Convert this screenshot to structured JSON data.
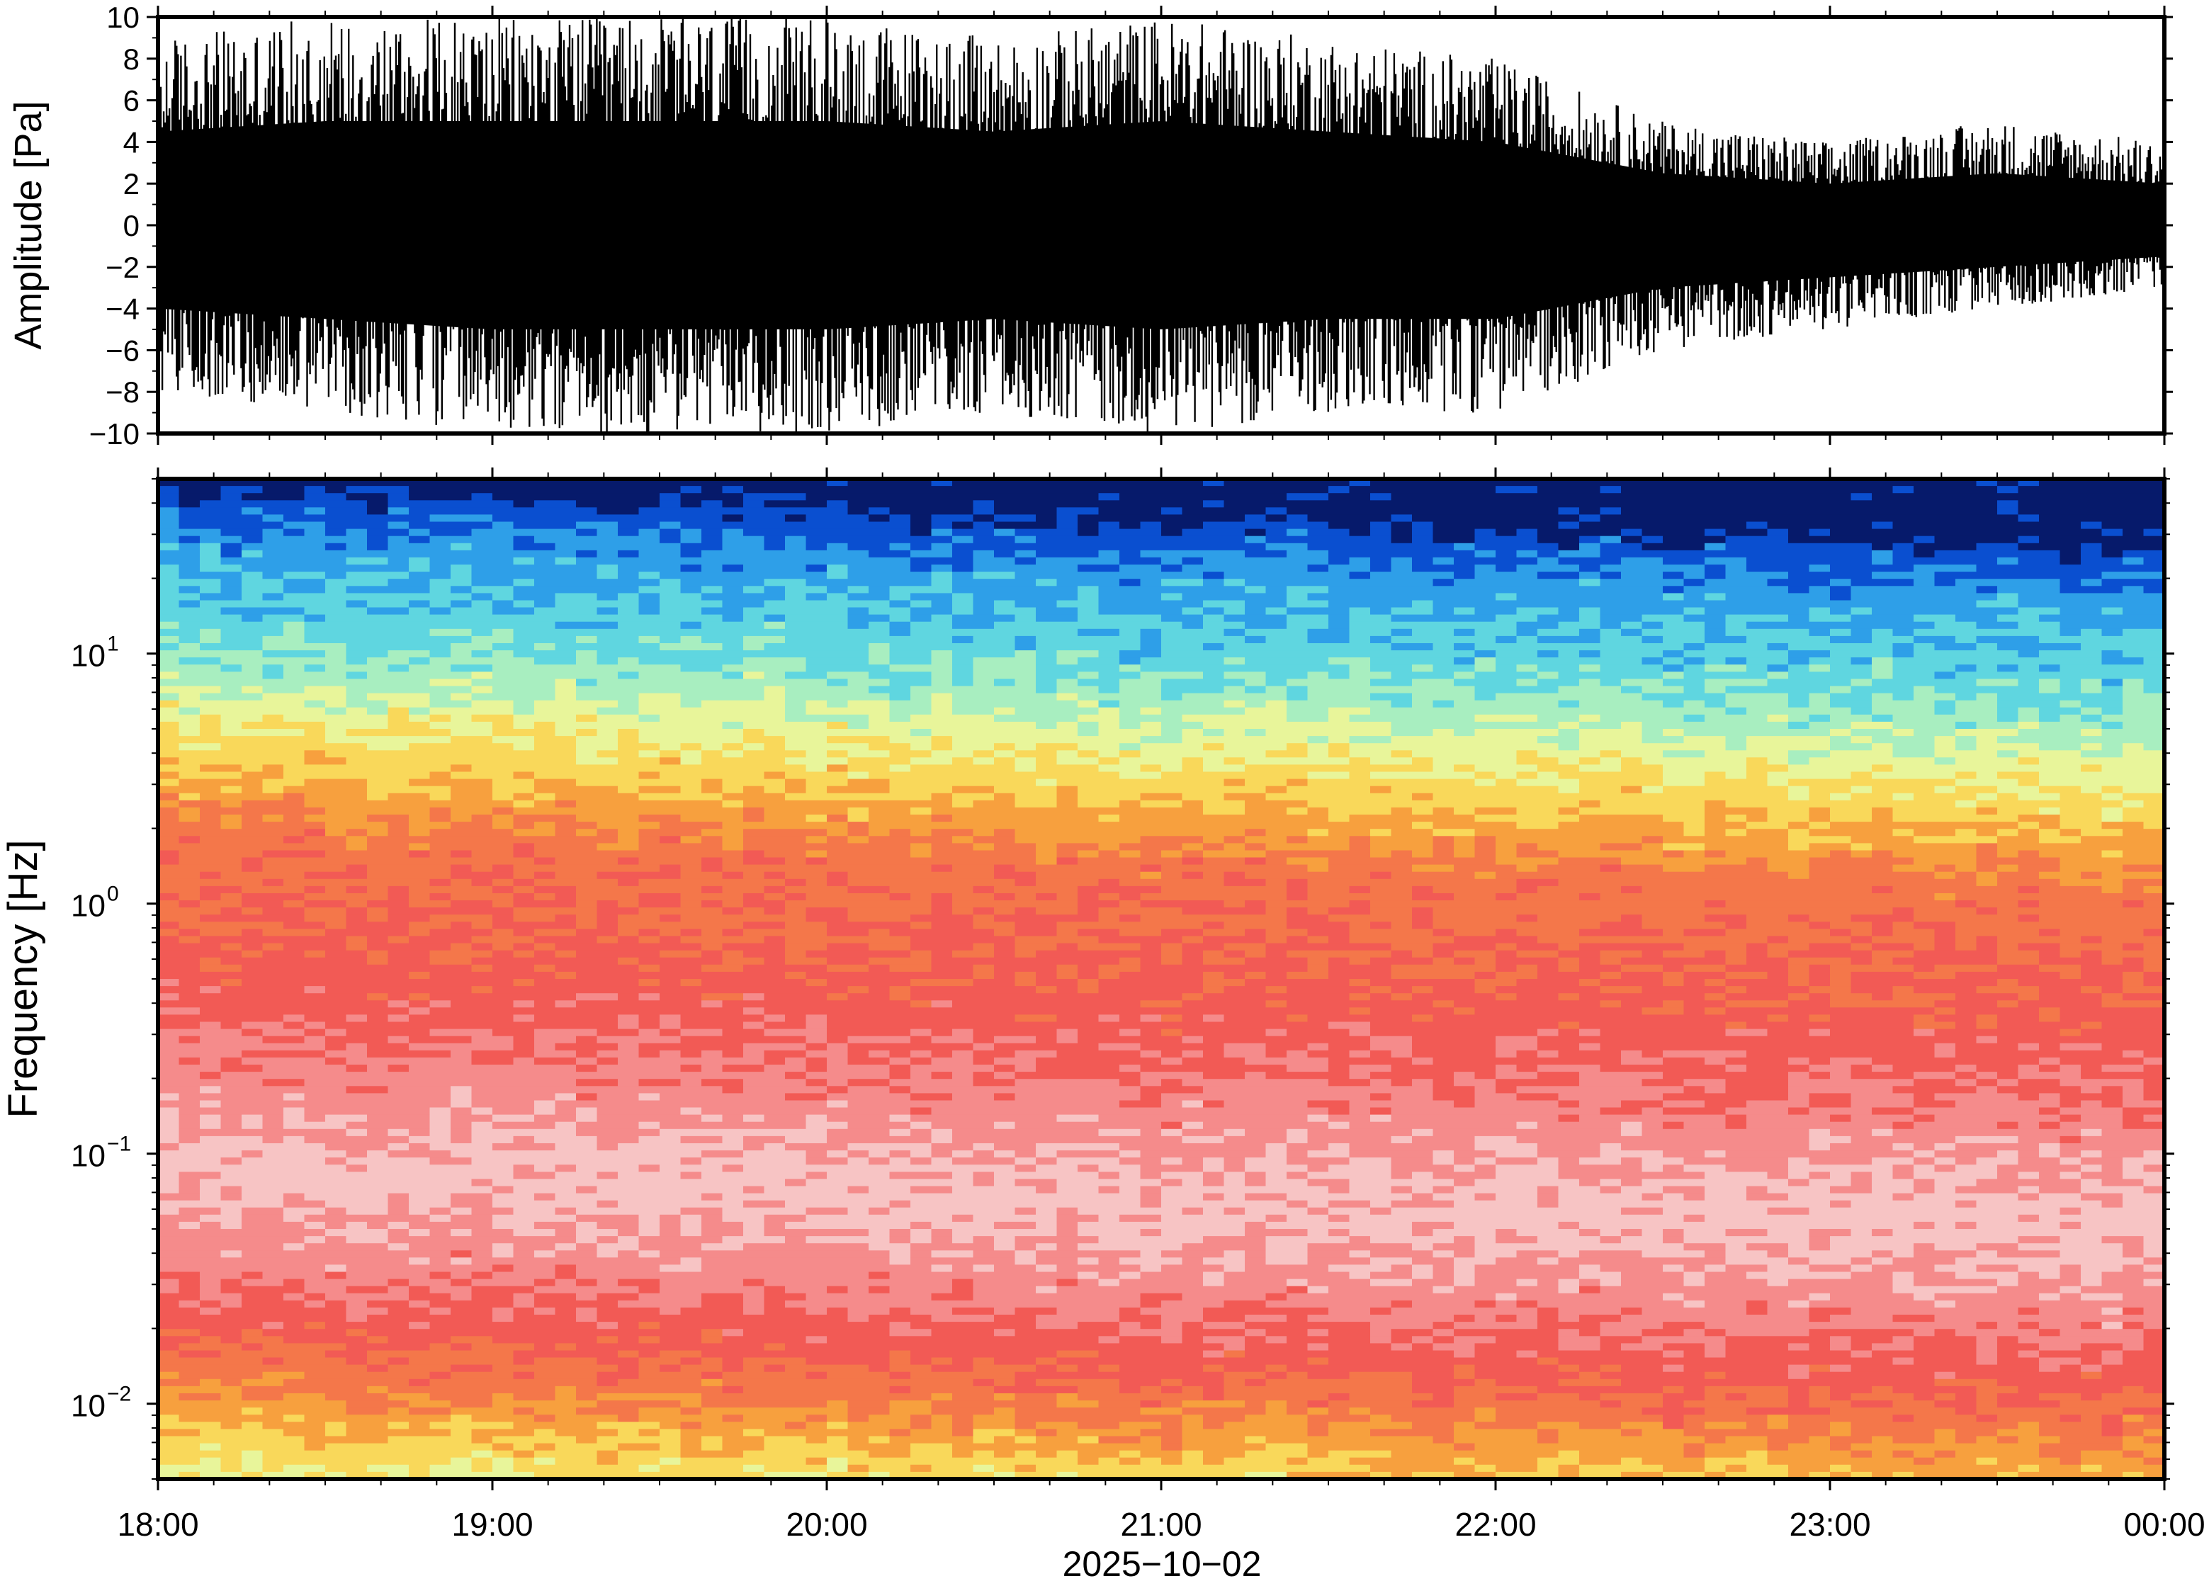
{
  "chart_data": [
    {
      "type": "line",
      "ylabel": "Amplitude [Pa]",
      "ylim": [
        -10,
        10
      ],
      "yticks": [
        "10",
        "8",
        "6",
        "4",
        "2",
        "0",
        "−2",
        "−4",
        "−6",
        "−8",
        "−10"
      ],
      "xlim": [
        "18:00",
        "00:00"
      ],
      "series": [
        {
          "description_values": "envelope (peak amplitude) of the pressure trace, sampled every 30 min",
          "time": [
            "18:00",
            "18:30",
            "19:00",
            "19:30",
            "20:00",
            "20:30",
            "21:00",
            "21:30",
            "22:00",
            "22:30",
            "23:00",
            "23:30",
            "00:00"
          ],
          "upper": [
            9,
            10,
            10,
            10,
            10,
            9,
            10,
            9,
            8,
            5,
            4,
            5,
            4
          ],
          "lower": [
            -8,
            -9,
            -10,
            -10,
            -10,
            -9,
            -10,
            -9,
            -9,
            -6,
            -5,
            -4,
            -3
          ]
        }
      ],
      "grid": false
    },
    {
      "type": "heatmap",
      "ylabel": "Frequency [Hz]",
      "yscale": "log",
      "ylim": [
        0.005,
        50
      ],
      "yticks": [
        {
          "base": "10",
          "exp": "1",
          "value": 10
        },
        {
          "base": "10",
          "exp": "0",
          "value": 1
        },
        {
          "base": "10",
          "exp": "−1",
          "value": 0.1
        },
        {
          "base": "10",
          "exp": "−2",
          "value": 0.01
        }
      ],
      "xlabel": "2025−10−02",
      "xticks": [
        "18:00",
        "19:00",
        "20:00",
        "21:00",
        "22:00",
        "23:00",
        "00:00"
      ],
      "colormap": [
        "#061a6b",
        "#0a4fd0",
        "#2e9fe8",
        "#5fd6e0",
        "#a8eec0",
        "#e8f59a",
        "#f9d85a",
        "#f7a03e",
        "#f4774a",
        "#f25a55",
        "#f58b8b",
        "#f7c4c4"
      ],
      "grid": false
    }
  ]
}
